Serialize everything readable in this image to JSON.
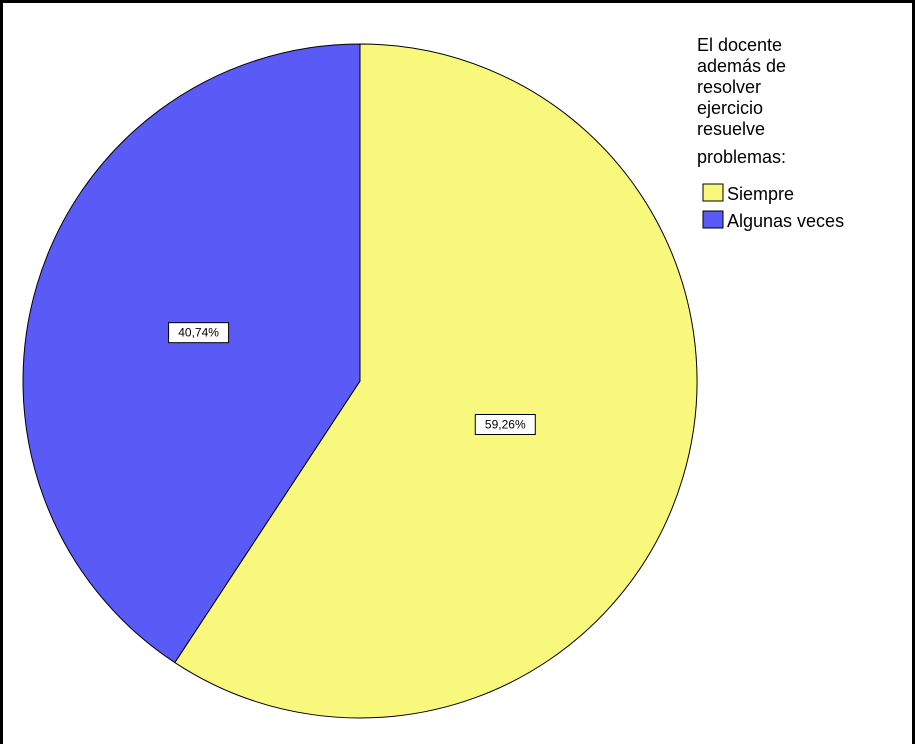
{
  "chart_data": {
    "type": "pie",
    "legend_title": [
      "El docente",
      "además de",
      "resolver",
      "ejercicio",
      "resuelve",
      "problemas:"
    ],
    "legend_position": "top-right",
    "slices": [
      {
        "label": "Siempre",
        "value": 59.26,
        "display": "59,26%",
        "color": "#f8f87c"
      },
      {
        "label": "Algunas veces",
        "value": 40.74,
        "display": "40,74%",
        "color": "#5a5af6"
      }
    ]
  }
}
